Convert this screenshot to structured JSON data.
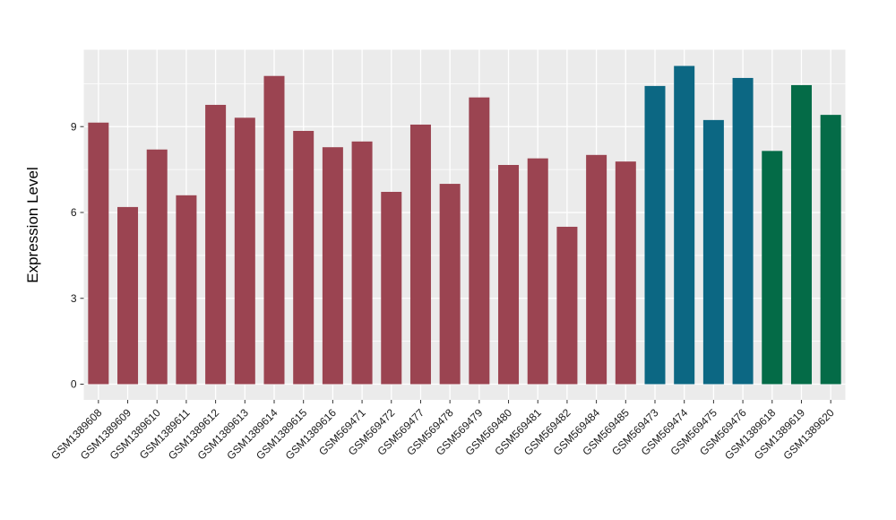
{
  "chart_data": {
    "type": "bar",
    "title": "",
    "xlabel": "",
    "ylabel": "Expression Level",
    "categories": [
      "GSM1389608",
      "GSM1389609",
      "GSM1389610",
      "GSM1389611",
      "GSM1389612",
      "GSM1389613",
      "GSM1389614",
      "GSM1389615",
      "GSM1389616",
      "GSM569471",
      "GSM569472",
      "GSM569477",
      "GSM569478",
      "GSM569479",
      "GSM569480",
      "GSM569481",
      "GSM569482",
      "GSM569484",
      "GSM569485",
      "GSM569473",
      "GSM569474",
      "GSM569475",
      "GSM569476",
      "GSM1389618",
      "GSM1389619",
      "GSM1389620"
    ],
    "values": [
      9.14,
      6.19,
      8.2,
      6.6,
      9.76,
      9.31,
      10.77,
      8.85,
      8.28,
      8.48,
      6.72,
      9.07,
      7.0,
      10.02,
      7.66,
      7.89,
      5.5,
      8.01,
      7.78,
      10.42,
      11.12,
      9.23,
      10.7,
      8.15,
      10.45,
      9.41
    ],
    "group_index": [
      0,
      0,
      0,
      0,
      0,
      0,
      0,
      0,
      0,
      0,
      0,
      0,
      0,
      0,
      0,
      0,
      0,
      0,
      0,
      1,
      1,
      1,
      1,
      2,
      2,
      2
    ],
    "group_colors": [
      "#9B4451",
      "#0C6783",
      "#046B47"
    ],
    "yticks": [
      0,
      3,
      6,
      9
    ],
    "minor_yticks": [
      1.5,
      4.5,
      7.5,
      10.5
    ],
    "ylim": [
      -0.58,
      11.69
    ],
    "grid": true,
    "legend": "none",
    "panel_bg": "#EBEBEB",
    "grid_color": "#FFFFFF",
    "tick_color": "#333333",
    "tick_label_color": "#1a1a1a",
    "axis_title_color": "#000000"
  }
}
